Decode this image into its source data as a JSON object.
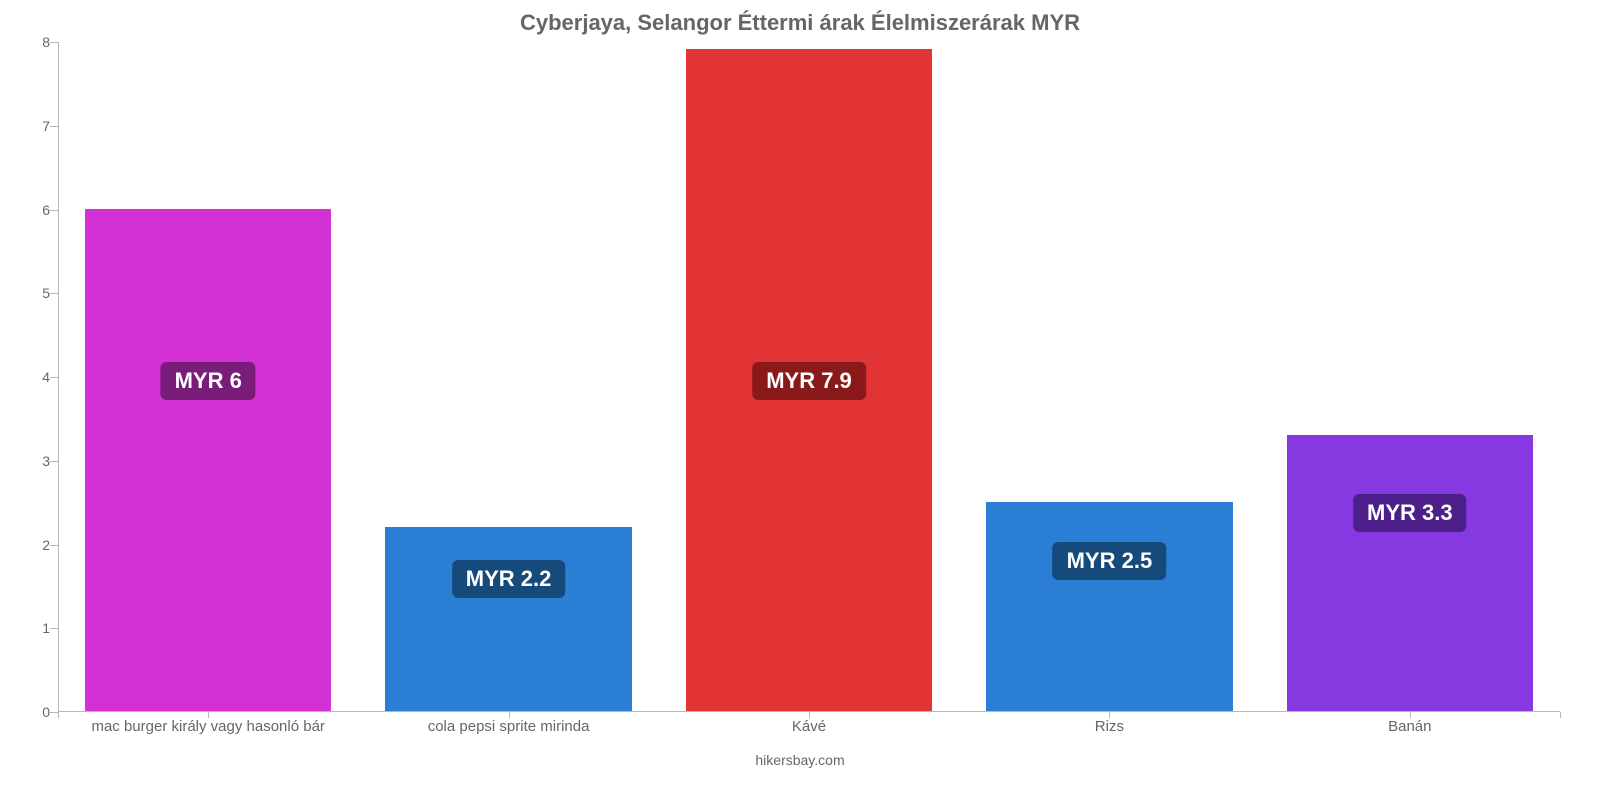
{
  "chart": {
    "type": "bar",
    "title": "Cyberjaya, Selangor Éttermi árak Élelmiszerárak MYR",
    "title_fontsize": 22,
    "title_color": "#666666",
    "credit": "hikersbay.com",
    "credit_fontsize": 14,
    "credit_color": "#666666",
    "background_color": "#ffffff",
    "axis_color": "#b7b7b7",
    "tick_label_color": "#666666",
    "tick_label_fontsize": 14,
    "cat_label_fontsize": 15,
    "ylim": [
      0,
      8
    ],
    "ytick_step": 1,
    "bar_width_ratio": 0.82,
    "categories": [
      "mac burger király vagy hasonló bár",
      "cola pepsi sprite mirinda",
      "Kávé",
      "Rizs",
      "Banán"
    ],
    "values": [
      6.0,
      2.2,
      7.9,
      2.5,
      3.3
    ],
    "value_labels": [
      "MYR 6",
      "MYR 2.2",
      "MYR 7.9",
      "MYR 2.5",
      "MYR 3.3"
    ],
    "bar_colors": [
      "#d331d3",
      "#2a7fd4",
      "#e23434",
      "#2a7fd4",
      "#8639e0"
    ],
    "badge_colors": [
      "#7a1c7a",
      "#154a7a",
      "#8a1a1a",
      "#154a7a",
      "#4c1f8a"
    ],
    "badge_fontsize": 22,
    "badge_y_value": 3.95
  }
}
